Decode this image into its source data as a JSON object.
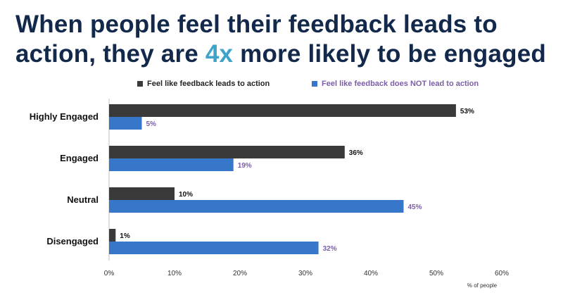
{
  "title": {
    "line1": "When people feel their feedback leads to",
    "line2_pre": "action, they are ",
    "line2_accent": "4x",
    "line2_post": " more likely to be engaged"
  },
  "colors": {
    "title": "#13294b",
    "accent": "#3fa3c9",
    "series1": "#3a3a3a",
    "series2": "#3777c9",
    "series2_label": "#7b5ea7"
  },
  "chart_data": {
    "type": "bar",
    "orientation": "horizontal",
    "categories": [
      "Highly Engaged",
      "Engaged",
      "Neutral",
      "Disengaged"
    ],
    "series": [
      {
        "name": "Feel like feedback leads to action",
        "values": [
          53,
          36,
          10,
          1
        ],
        "labels": [
          "53%",
          "36%",
          "10%",
          "1%"
        ]
      },
      {
        "name": "Feel like feedback does NOT lead to action",
        "values": [
          5,
          19,
          45,
          32
        ],
        "labels": [
          "5%",
          "19%",
          "45%",
          "32%"
        ]
      }
    ],
    "xticks": [
      "0%",
      "10%",
      "20%",
      "30%",
      "40%",
      "50%",
      "60%"
    ],
    "xlim": [
      0,
      60
    ],
    "xlabel": "% of people",
    "legend_position": "top",
    "grid": false
  }
}
